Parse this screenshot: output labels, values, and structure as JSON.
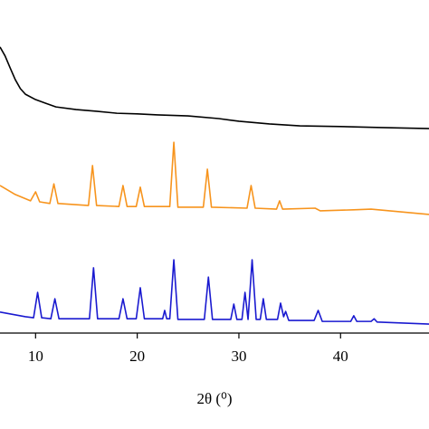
{
  "chart_data": {
    "type": "line",
    "xlabel": "2θ (⁰)",
    "xlim": [
      6.5,
      48.7
    ],
    "xticks": [
      10,
      20,
      30,
      40
    ],
    "ylim": [
      0,
      100
    ],
    "series": [
      {
        "color": "#000000",
        "x": [
          6.5,
          7,
          7.5,
          8,
          8.5,
          9,
          10,
          11,
          12,
          14,
          16,
          18,
          20,
          22,
          25,
          28,
          30,
          33,
          36,
          40,
          44,
          48.7
        ],
        "values": [
          85.9,
          83.2,
          79.6,
          76.1,
          73.4,
          71.7,
          70.1,
          69.0,
          67.9,
          67.1,
          66.6,
          66.0,
          65.8,
          65.5,
          65.2,
          64.4,
          63.6,
          62.8,
          62.2,
          62.0,
          61.7,
          61.4
        ]
      },
      {
        "color": "#f7941d",
        "x": [
          6.5,
          8,
          9.5,
          10.0,
          10.4,
          11.4,
          11.8,
          12.2,
          15.2,
          15.6,
          16.0,
          18.2,
          18.6,
          19.0,
          19.9,
          20.3,
          20.7,
          23.2,
          23.6,
          24.0,
          26.5,
          26.9,
          27.3,
          30.8,
          31.2,
          31.6,
          33.7,
          34.0,
          34.3,
          37.5,
          38,
          41.3,
          43,
          48.7
        ],
        "values": [
          44.3,
          41.6,
          39.7,
          42.4,
          39.4,
          38.9,
          44.8,
          38.9,
          38.3,
          50.3,
          38.3,
          38.0,
          44.3,
          38.0,
          38.0,
          43.8,
          38.0,
          38.0,
          57.3,
          37.8,
          37.8,
          49.2,
          37.8,
          37.5,
          44.3,
          37.5,
          37.2,
          39.7,
          37.2,
          37.5,
          36.7,
          37.0,
          37.2,
          35.6
        ]
      },
      {
        "color": "#1a1ad0",
        "x": [
          6.5,
          9,
          9.8,
          10.2,
          10.6,
          11.5,
          11.9,
          12.3,
          15.3,
          15.7,
          16.1,
          18.2,
          18.6,
          19.0,
          19.9,
          20.3,
          20.7,
          22.5,
          22.7,
          22.9,
          23.2,
          23.6,
          24.0,
          26.6,
          27.0,
          27.4,
          29.2,
          29.5,
          29.8,
          30.3,
          30.6,
          30.9,
          31.3,
          31.7,
          32.1,
          32.4,
          32.7,
          33.8,
          34.1,
          34.4,
          34.6,
          34.9,
          37.4,
          37.8,
          38.2,
          41.0,
          41.3,
          41.6,
          43.0,
          43.3,
          43.6,
          48.7
        ],
        "values": [
          6.3,
          4.9,
          4.6,
          12.2,
          4.6,
          4.3,
          10.3,
          4.3,
          4.3,
          19.6,
          4.3,
          4.3,
          10.3,
          4.3,
          4.3,
          13.6,
          4.3,
          4.3,
          6.8,
          4.3,
          4.3,
          22.0,
          4.1,
          4.1,
          16.8,
          4.1,
          4.1,
          8.7,
          4.1,
          4.1,
          12.2,
          4.1,
          22.0,
          4.1,
          4.1,
          10.3,
          4.1,
          4.1,
          9.0,
          4.9,
          6.5,
          3.8,
          3.8,
          6.8,
          3.5,
          3.5,
          5.2,
          3.5,
          3.5,
          4.3,
          3.3,
          2.7
        ]
      }
    ]
  }
}
